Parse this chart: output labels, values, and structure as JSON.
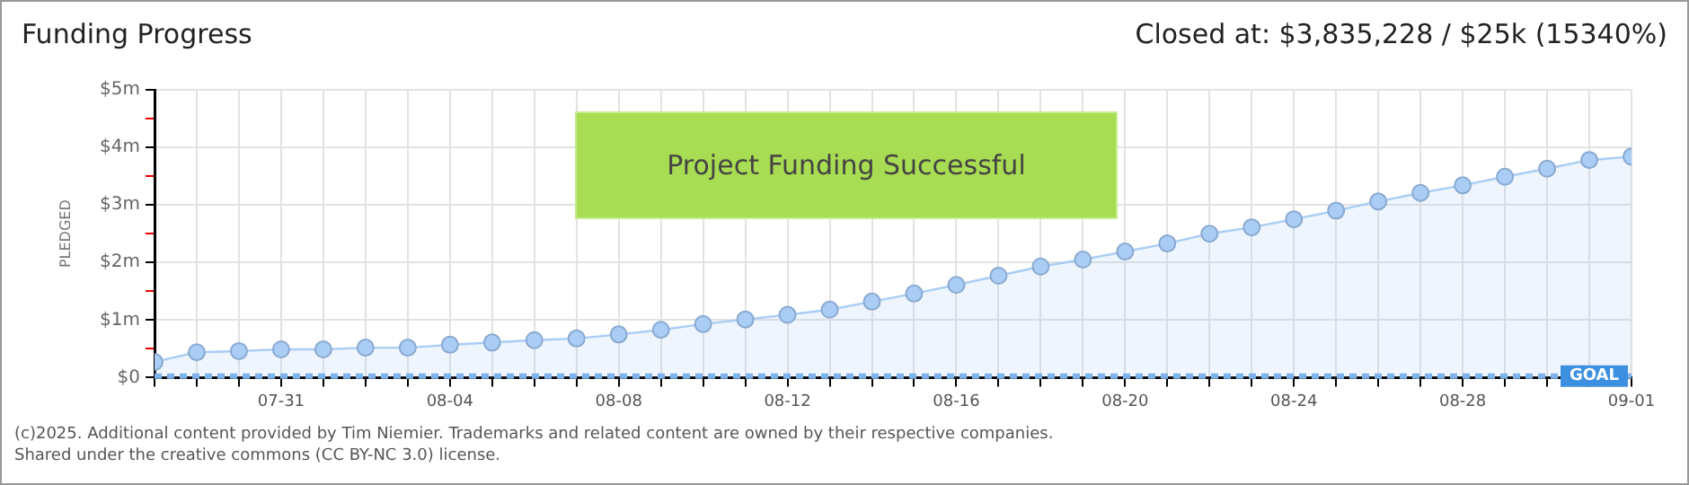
{
  "chart_data": {
    "type": "area",
    "title": "Funding Progress",
    "subtitle": "Closed at: $3,835,228 / $25k (15340%)",
    "ylabel": "PLEDGED",
    "x": [
      "--07-28",
      "--07-29",
      "--07-30",
      "--07-31",
      "--08-01",
      "--08-02",
      "--08-03",
      "--08-04",
      "--08-05",
      "--08-06",
      "--08-07",
      "--08-08",
      "--08-09",
      "--08-10",
      "--08-11",
      "--08-12",
      "--08-13",
      "--08-14",
      "--08-15",
      "--08-16",
      "--08-17",
      "--08-18",
      "--08-19",
      "--08-20",
      "--08-21",
      "--08-22",
      "--08-23",
      "--08-24",
      "--08-25",
      "--08-26",
      "--08-27",
      "--08-28",
      "--08-29",
      "--08-30",
      "--08-31",
      "--09-01"
    ],
    "series": [
      {
        "color": "#a9cdf5",
        "values": [
          0.27,
          0.44,
          0.46,
          0.49,
          0.49,
          0.52,
          0.52,
          0.57,
          0.61,
          0.65,
          0.68,
          0.75,
          0.83,
          0.93,
          1.01,
          1.09,
          1.18,
          1.32,
          1.46,
          1.61,
          1.77,
          1.93,
          2.05,
          2.19,
          2.33,
          2.5,
          2.61,
          2.75,
          2.9,
          3.06,
          3.21,
          3.34,
          3.49,
          3.63,
          3.78,
          3.84
        ]
      }
    ],
    "xlim": [
      "--07-28",
      "--09-01"
    ],
    "xticks": [
      {
        "value": "--07-28",
        "label": null
      },
      {
        "value": "--07-29",
        "label": null
      },
      {
        "value": "--07-30",
        "label": null
      },
      {
        "value": "--07-31",
        "label": "07-31"
      },
      {
        "value": "--08-01",
        "label": null
      },
      {
        "value": "--08-02",
        "label": null
      },
      {
        "value": "--08-03",
        "label": null
      },
      {
        "value": "--08-04",
        "label": "08-04"
      },
      {
        "value": "--08-05",
        "label": null
      },
      {
        "value": "--08-06",
        "label": null
      },
      {
        "value": "--08-07",
        "label": null
      },
      {
        "value": "--08-08",
        "label": "08-08"
      },
      {
        "value": "--08-09",
        "label": null
      },
      {
        "value": "--08-10",
        "label": null
      },
      {
        "value": "--08-11",
        "label": null
      },
      {
        "value": "--08-12",
        "label": "08-12"
      },
      {
        "value": "--08-13",
        "label": null
      },
      {
        "value": "--08-14",
        "label": null
      },
      {
        "value": "--08-15",
        "label": null
      },
      {
        "value": "--08-16",
        "label": "08-16"
      },
      {
        "value": "--08-17",
        "label": null
      },
      {
        "value": "--08-18",
        "label": null
      },
      {
        "value": "--08-19",
        "label": null
      },
      {
        "value": "--08-20",
        "label": "08-20"
      },
      {
        "value": "--08-21",
        "label": null
      },
      {
        "value": "--08-22",
        "label": null
      },
      {
        "value": "--08-23",
        "label": null
      },
      {
        "value": "--08-24",
        "label": "08-24"
      },
      {
        "value": "--08-25",
        "label": null
      },
      {
        "value": "--08-26",
        "label": null
      },
      {
        "value": "--08-27",
        "label": null
      },
      {
        "value": "--08-28",
        "label": "08-28"
      },
      {
        "value": "--08-29",
        "label": null
      },
      {
        "value": "--08-30",
        "label": null
      },
      {
        "value": "--08-31",
        "label": null
      },
      {
        "value": "--09-01",
        "label": "09-01"
      }
    ],
    "ylim": [
      0,
      5
    ],
    "yticks": [
      {
        "value": 0,
        "label": "$0"
      },
      {
        "value": 0.5,
        "label": null
      },
      {
        "value": 1,
        "label": "$1m"
      },
      {
        "value": 1.5,
        "label": null
      },
      {
        "value": 2,
        "label": "$2m"
      },
      {
        "value": 2.5,
        "label": null
      },
      {
        "value": 3,
        "label": "$3m"
      },
      {
        "value": 3.5,
        "label": null
      },
      {
        "value": 4,
        "label": "$4m"
      },
      {
        "value": 4.5,
        "label": null
      },
      {
        "value": 5,
        "label": "$5m"
      }
    ],
    "ref_lines": [
      {
        "axis": "y",
        "value": 0.025,
        "label": "GOAL",
        "color": "#7fb2ea",
        "line_style": "dashed"
      }
    ],
    "grid": true,
    "legend": false,
    "marker": "circle",
    "line_style": "solid",
    "annotations": [
      "Project Funding Successful",
      "(c)2025. Additional content provided by Tim Niemier. Trademarks and related content are owned by their respective companies.",
      "Shared under the creative commons (CC BY-NC 3.0) license."
    ]
  }
}
